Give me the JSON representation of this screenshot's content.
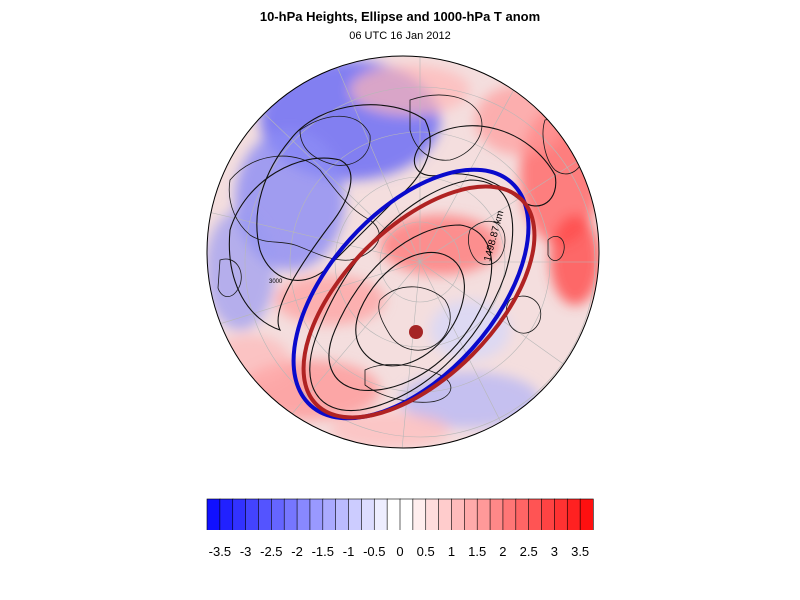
{
  "figure": {
    "title": "10-hPa Heights, Ellipse and 1000-hPa T anom",
    "subtitle": "06 UTC 16 Jan 2012"
  },
  "map": {
    "projection": "polar stereographic (northern hemisphere)",
    "contour_label": "1498.87 km",
    "small_contour_label": "3000",
    "colors": {
      "blue_ellipse": "#0a0acc",
      "red_ellipse": "#b02222",
      "centroid": "#a52525",
      "contour": "#111111"
    }
  },
  "colorbar": {
    "ticks": [
      "-3.5",
      "-3",
      "-2.5",
      "-2",
      "-1.5",
      "-1",
      "-0.5",
      "0",
      "0.5",
      "1",
      "1.5",
      "2",
      "2.5",
      "3",
      "3.5"
    ],
    "range": [
      -3.75,
      3.75
    ],
    "levels": 30,
    "low_color": "#1010ff",
    "mid_color": "#ffffff",
    "high_color": "#ff1010"
  }
}
